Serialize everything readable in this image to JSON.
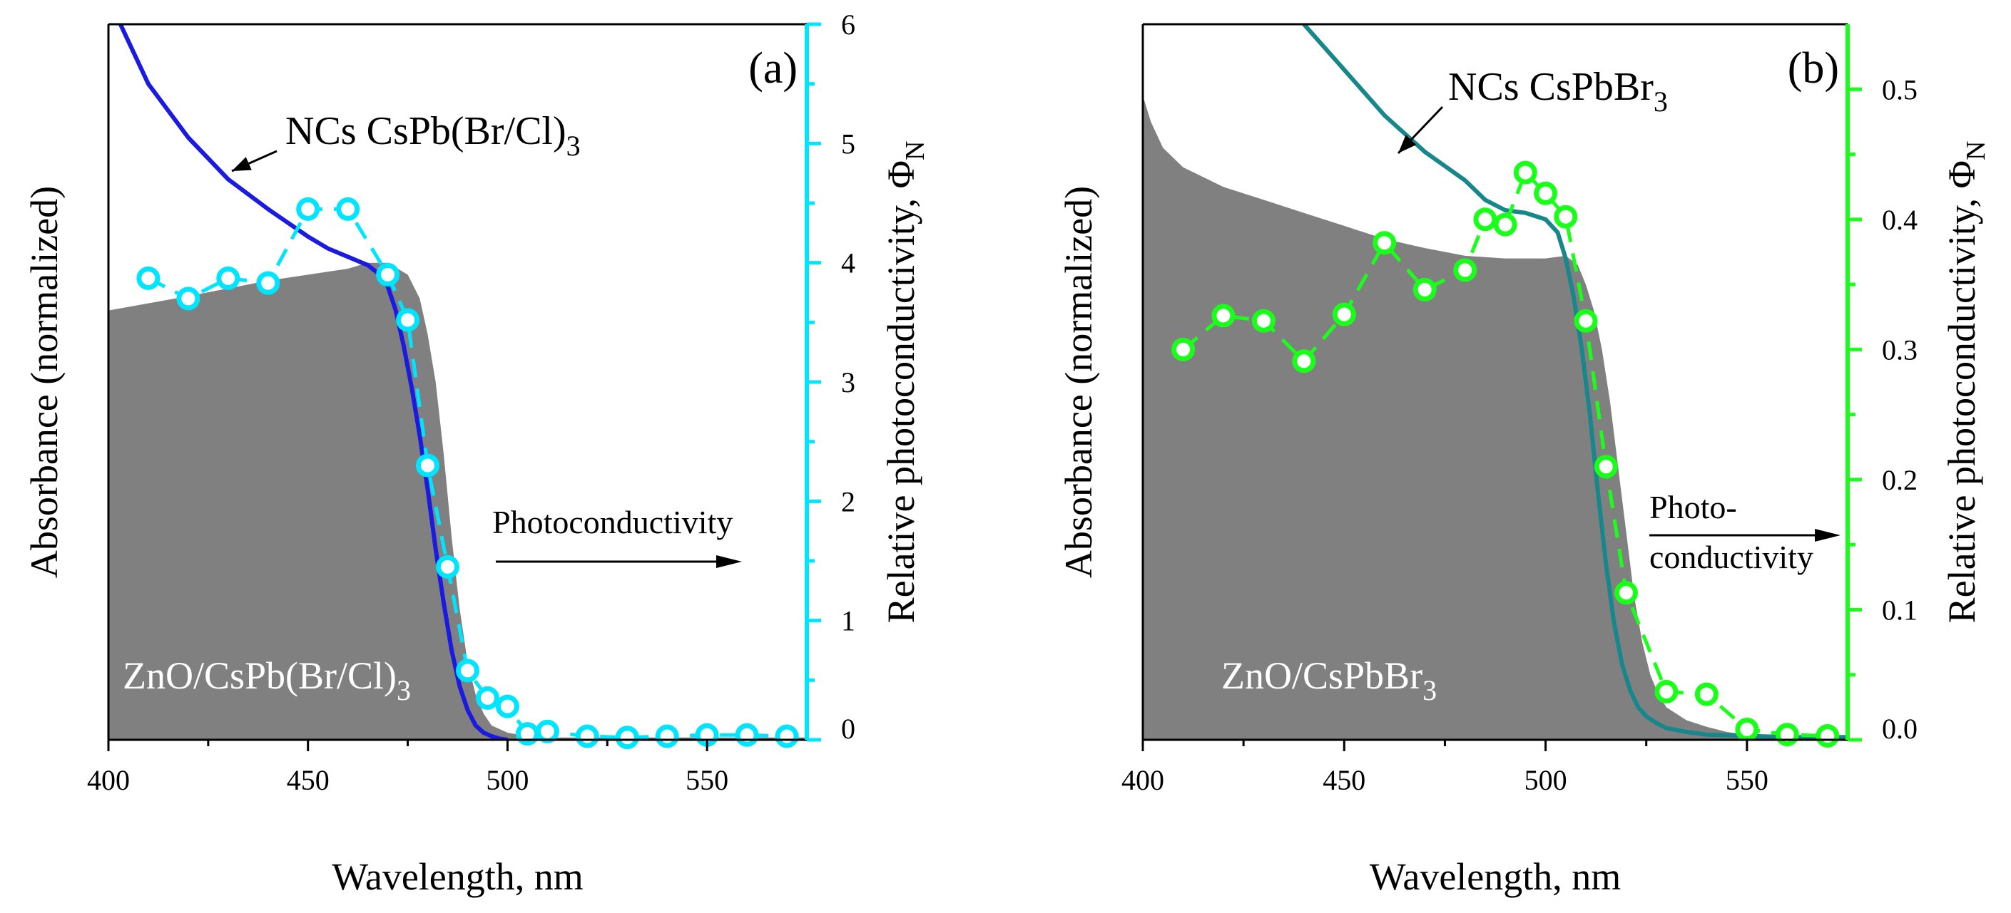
{
  "chart_data": [
    {
      "panel_label": "(a)",
      "type": "line",
      "xlabel": "Wavelength, nm",
      "ylabel_left": "Absorbance (normalized)",
      "ylabel_right": "Relative photoconductivity, Φ",
      "ylabel_right_sub": "N",
      "xlim": [
        400,
        575
      ],
      "x_ticks": [
        "400",
        "450",
        "500",
        "550"
      ],
      "x_tick_values": [
        400,
        450,
        500,
        550
      ],
      "ylim_right": [
        0,
        6
      ],
      "y_right_ticks": [
        "0",
        "1",
        "2",
        "3",
        "4",
        "5",
        "6"
      ],
      "y_right_tick_values": [
        0,
        1,
        2,
        3,
        4,
        5,
        6
      ],
      "right_axis_color": "#00e5ff",
      "annotations": {
        "curve_label": "NCs CsPb(Br/Cl)",
        "curve_label_sub": "3",
        "filled_label": "ZnO/CsPb(Br/Cl)",
        "filled_label_sub": "3",
        "arrow_label": "Photoconductivity"
      },
      "series": [
        {
          "name": "ZnO/CsPb(Br/Cl)3 absorbance (filled)",
          "style": "area",
          "color": "#808080",
          "x": [
            400,
            420,
            440,
            450,
            460,
            465,
            470,
            475,
            478,
            480,
            482,
            484,
            486,
            488,
            490,
            492,
            494,
            496,
            500,
            505,
            510,
            520,
            540,
            560,
            575
          ],
          "y": [
            3.6,
            3.72,
            3.85,
            3.9,
            3.95,
            4.0,
            4.0,
            3.9,
            3.7,
            3.4,
            3.0,
            2.4,
            1.7,
            1.1,
            0.65,
            0.38,
            0.22,
            0.12,
            0.06,
            0.03,
            0.02,
            0.02,
            0.02,
            0.02,
            0.02
          ]
        },
        {
          "name": "NCs CsPb(Br/Cl)3 absorbance",
          "style": "line",
          "color": "#1a1ae0",
          "x": [
            403,
            410,
            420,
            430,
            440,
            450,
            455,
            460,
            465,
            468,
            470,
            472,
            474,
            476,
            478,
            480,
            482,
            484,
            486,
            488,
            490,
            492,
            494,
            496,
            498,
            500
          ],
          "y": [
            6.0,
            5.5,
            5.05,
            4.7,
            4.45,
            4.22,
            4.12,
            4.05,
            3.98,
            3.9,
            3.8,
            3.6,
            3.3,
            2.95,
            2.55,
            2.1,
            1.6,
            1.15,
            0.75,
            0.45,
            0.25,
            0.12,
            0.06,
            0.03,
            0.01,
            0.0
          ]
        },
        {
          "name": "Photoconductivity (a)",
          "style": "markers+dash",
          "color": "#00e5ff",
          "x": [
            410,
            420,
            430,
            440,
            450,
            460,
            470,
            475,
            480,
            485,
            490,
            495,
            500,
            505,
            510,
            520,
            530,
            540,
            550,
            560,
            570
          ],
          "y": [
            3.87,
            3.7,
            3.87,
            3.83,
            4.45,
            4.45,
            3.9,
            3.52,
            2.3,
            1.45,
            0.58,
            0.35,
            0.28,
            0.05,
            0.07,
            0.03,
            0.02,
            0.03,
            0.04,
            0.04,
            0.03
          ]
        }
      ]
    },
    {
      "panel_label": "(b)",
      "type": "line",
      "xlabel": "Wavelength, nm",
      "ylabel_left": "Absorbance (normalized)",
      "ylabel_right": "Relative photoconductivity, Φ",
      "ylabel_right_sub": "N",
      "xlim": [
        400,
        575
      ],
      "x_ticks": [
        "400",
        "450",
        "500",
        "550"
      ],
      "x_tick_values": [
        400,
        450,
        500,
        550
      ],
      "ylim_right": [
        0,
        0.55
      ],
      "y_right_ticks": [
        "0.0",
        "0.1",
        "0.2",
        "0.3",
        "0.4",
        "0.5"
      ],
      "y_right_tick_values": [
        0,
        0.1,
        0.2,
        0.3,
        0.4,
        0.5
      ],
      "right_axis_color": "#1aff1a",
      "annotations": {
        "curve_label": "NCs CsPbBr",
        "curve_label_sub": "3",
        "filled_label": "ZnO/CsPbBr",
        "filled_label_sub": "3",
        "arrow_label": "Photo-",
        "arrow_label_2": "conductivity"
      },
      "series": [
        {
          "name": "ZnO/CsPbBr3 absorbance (filled)",
          "style": "area",
          "color": "#808080",
          "x": [
            400,
            402,
            405,
            410,
            420,
            430,
            440,
            450,
            460,
            470,
            480,
            490,
            500,
            505,
            508,
            510,
            512,
            514,
            516,
            518,
            520,
            522,
            524,
            526,
            528,
            530,
            535,
            540,
            545,
            550,
            560,
            575
          ],
          "y": [
            0.495,
            0.475,
            0.455,
            0.44,
            0.425,
            0.415,
            0.405,
            0.395,
            0.385,
            0.378,
            0.372,
            0.37,
            0.37,
            0.372,
            0.365,
            0.35,
            0.33,
            0.3,
            0.26,
            0.21,
            0.16,
            0.11,
            0.075,
            0.05,
            0.035,
            0.025,
            0.015,
            0.01,
            0.006,
            0.004,
            0.002,
            0.002
          ]
        },
        {
          "name": "NCs CsPbBr3 absorbance",
          "style": "line",
          "color": "#17878c",
          "x": [
            440,
            450,
            460,
            470,
            480,
            485,
            490,
            495,
            500,
            503,
            505,
            507,
            509,
            511,
            513,
            515,
            517,
            519,
            521,
            523,
            525,
            528,
            530,
            535,
            540,
            550,
            560,
            575
          ],
          "y": [
            0.55,
            0.515,
            0.48,
            0.452,
            0.43,
            0.415,
            0.407,
            0.405,
            0.4,
            0.39,
            0.37,
            0.34,
            0.3,
            0.25,
            0.19,
            0.135,
            0.09,
            0.058,
            0.038,
            0.025,
            0.018,
            0.012,
            0.009,
            0.006,
            0.004,
            0.003,
            0.002,
            0.002
          ]
        },
        {
          "name": "Photoconductivity (b)",
          "style": "markers+dash",
          "color": "#1aff1a",
          "x": [
            410,
            420,
            430,
            440,
            450,
            460,
            470,
            480,
            485,
            490,
            495,
            500,
            505,
            510,
            515,
            520,
            530,
            540,
            550,
            560,
            570
          ],
          "y": [
            0.3,
            0.326,
            0.322,
            0.291,
            0.327,
            0.382,
            0.346,
            0.361,
            0.4,
            0.396,
            0.436,
            0.42,
            0.402,
            0.322,
            0.21,
            0.113,
            0.037,
            0.035,
            0.008,
            0.004,
            0.003
          ]
        }
      ]
    }
  ]
}
